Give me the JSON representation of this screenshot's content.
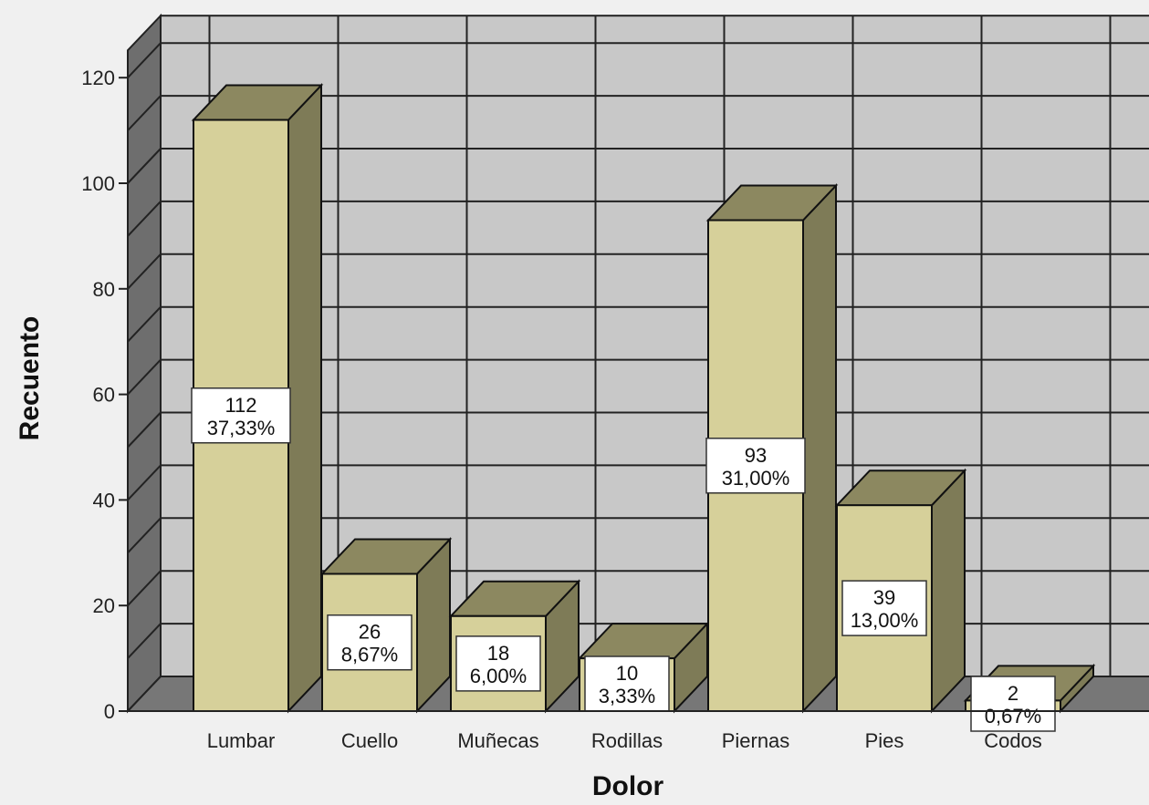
{
  "chart_data": {
    "type": "bar",
    "title": "",
    "xlabel": "Dolor",
    "ylabel": "Recuento",
    "categories": [
      "Lumbar",
      "Cuello",
      "Muñecas",
      "Rodillas",
      "Piernas",
      "Pies",
      "Codos"
    ],
    "values": [
      112,
      26,
      18,
      10,
      93,
      39,
      2
    ],
    "percent_labels": [
      "37,33%",
      "8,67%",
      "6,00%",
      "3,33%",
      "31,00%",
      "13,00%",
      "0,67%"
    ],
    "yticks": [
      "0",
      "20",
      "40",
      "60",
      "80",
      "100",
      "120"
    ],
    "ylim": [
      0,
      120
    ],
    "grid": true,
    "style": "3d",
    "colors": {
      "bar_front": "#d6d09a",
      "bar_side": "#7e7b57",
      "bar_top": "#8c8860",
      "back_wall": "#c8c8c8",
      "side_wall": "#6e6e6e",
      "floor": "#777777",
      "grid": "#222222",
      "background": "#f0f0f0"
    }
  }
}
